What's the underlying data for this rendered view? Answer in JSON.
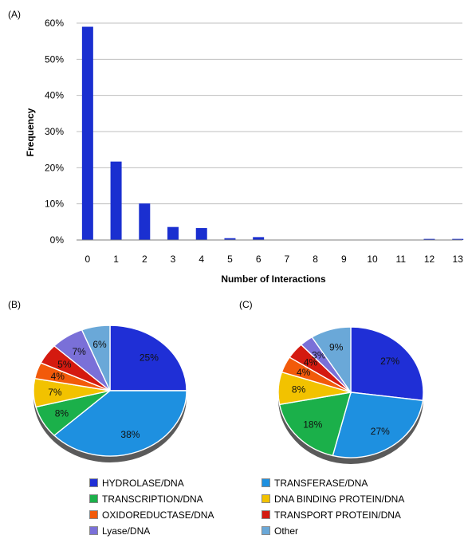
{
  "panels": {
    "a_label": "(A)",
    "b_label": "(B)",
    "c_label": "(C)"
  },
  "chart_data": [
    {
      "type": "bar",
      "panel": "(A)",
      "xlabel": "Number of Interactions",
      "ylabel": "Frequency",
      "categories": [
        "0",
        "1",
        "2",
        "3",
        "4",
        "5",
        "6",
        "7",
        "8",
        "9",
        "10",
        "11",
        "12",
        "13"
      ],
      "values": [
        59,
        21.7,
        10.1,
        3.6,
        3.3,
        0.5,
        0.8,
        0,
        0,
        0,
        0,
        0,
        0.3,
        0.3
      ],
      "value_unit": "%",
      "ylim": [
        0,
        60
      ],
      "yticks": [
        "0%",
        "10%",
        "20%",
        "30%",
        "40%",
        "50%",
        "60%"
      ],
      "grid": true,
      "color": "#1a2fd0"
    },
    {
      "type": "pie",
      "panel": "(B)",
      "slices": [
        {
          "name": "HYDROLASE/DNA",
          "value": 25,
          "label": "25%",
          "color": "#1f2fd6"
        },
        {
          "name": "TRANSFERASE/DNA",
          "value": 38,
          "label": "38%",
          "color": "#1e90e0"
        },
        {
          "name": "TRANSCRIPTION/DNA",
          "value": 8,
          "label": "8%",
          "color": "#1bb04a"
        },
        {
          "name": "DNA BINDING PROTEIN/DNA",
          "value": 7,
          "label": "7%",
          "color": "#f2c200"
        },
        {
          "name": "OXIDOREDUCTASE/DNA",
          "value": 4,
          "label": "4%",
          "color": "#f25a0a"
        },
        {
          "name": "TRANSPORT PROTEIN/DNA",
          "value": 5,
          "label": "5%",
          "color": "#d41a10"
        },
        {
          "name": "Lyase/DNA",
          "value": 7,
          "label": "7%",
          "color": "#7a70d8"
        },
        {
          "name": "Other",
          "value": 6,
          "label": "6%",
          "color": "#6aa8d8"
        }
      ]
    },
    {
      "type": "pie",
      "panel": "(C)",
      "slices": [
        {
          "name": "HYDROLASE/DNA",
          "value": 27,
          "label": "27%",
          "color": "#1f2fd6"
        },
        {
          "name": "TRANSFERASE/DNA",
          "value": 27,
          "label": "27%",
          "color": "#1e90e0"
        },
        {
          "name": "TRANSCRIPTION/DNA",
          "value": 18,
          "label": "18%",
          "color": "#1bb04a"
        },
        {
          "name": "DNA BINDING PROTEIN/DNA",
          "value": 8,
          "label": "8%",
          "color": "#f2c200"
        },
        {
          "name": "OXIDOREDUCTASE/DNA",
          "value": 4,
          "label": "4%",
          "color": "#f25a0a"
        },
        {
          "name": "TRANSPORT PROTEIN/DNA",
          "value": 4,
          "label": "4%",
          "color": "#d41a10"
        },
        {
          "name": "Lyase/DNA",
          "value": 3,
          "label": "3%",
          "color": "#7a70d8"
        },
        {
          "name": "Other",
          "value": 9,
          "label": "9%",
          "color": "#6aa8d8"
        }
      ]
    }
  ],
  "legend": {
    "items": [
      {
        "name": "HYDROLASE/DNA",
        "color": "#1f2fd6"
      },
      {
        "name": "TRANSFERASE/DNA",
        "color": "#1e90e0"
      },
      {
        "name": "TRANSCRIPTION/DNA",
        "color": "#1bb04a"
      },
      {
        "name": "DNA BINDING PROTEIN/DNA",
        "color": "#f2c200"
      },
      {
        "name": "OXIDOREDUCTASE/DNA",
        "color": "#f25a0a"
      },
      {
        "name": "TRANSPORT PROTEIN/DNA",
        "color": "#d41a10"
      },
      {
        "name": "Lyase/DNA",
        "color": "#7a70d8"
      },
      {
        "name": "Other",
        "color": "#6aa8d8"
      }
    ]
  }
}
